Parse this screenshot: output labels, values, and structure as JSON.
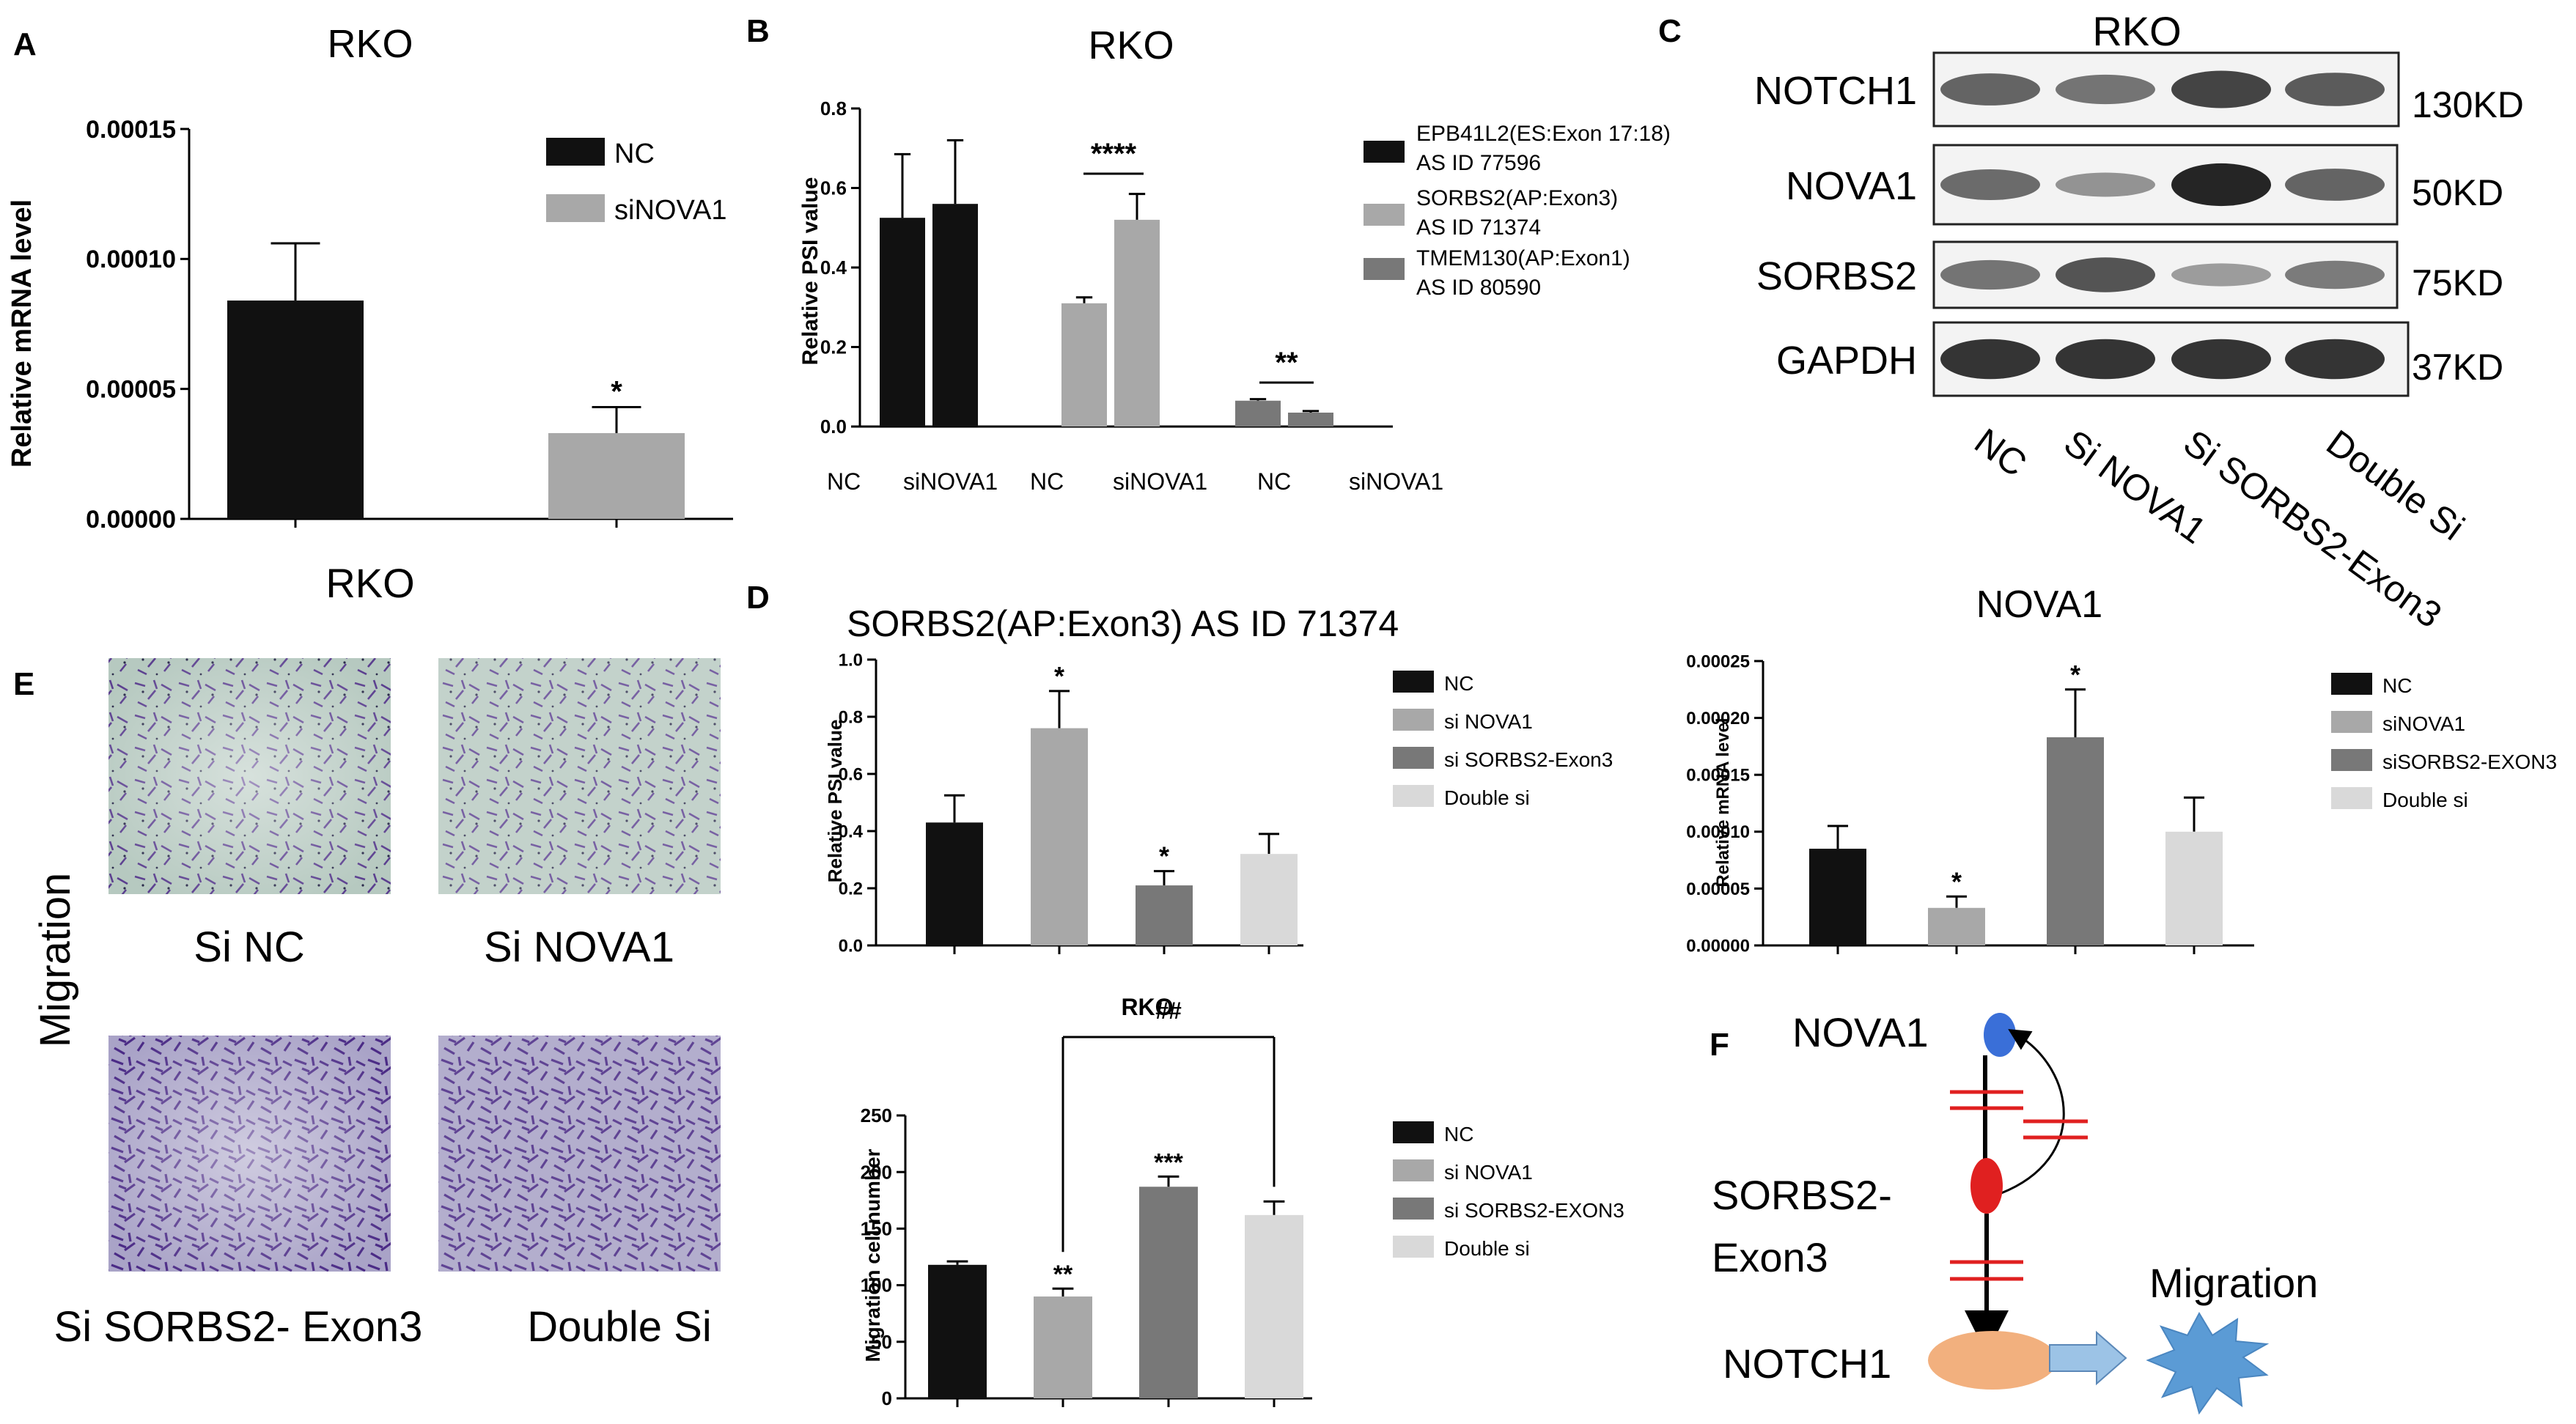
{
  "colors": {
    "black": "#111111",
    "gray": "#a8a8a8",
    "darkgray": "#787878",
    "lightgray": "#d9d9d9",
    "red": "#e02020",
    "blue": "#3a6fd8",
    "orange": "#f2b07e",
    "arrowblue": "#9cc3e6",
    "star": "#5b9bd5"
  },
  "panels": {
    "A": {
      "letter": "A",
      "chart_data": {
        "type": "bar",
        "title": "RKO",
        "xlabel": "",
        "ylabel": "Relative mRNA level",
        "categories": [
          "NC",
          "siNOVA1"
        ],
        "values": [
          8.4e-05,
          3.3e-05
        ],
        "errors": [
          2.2e-05,
          1e-05
        ],
        "ylim": [
          0,
          0.00015
        ],
        "yticks": [
          "0.00000",
          "0.00005",
          "0.00010",
          "0.00015"
        ],
        "annotations": [
          "",
          "*"
        ],
        "legend": [
          "NC",
          "siNOVA1"
        ]
      }
    },
    "B": {
      "letter": "B",
      "chart_data": {
        "type": "bar",
        "title": "RKO",
        "ylabel": "Relative PSI value",
        "groups": [
          "NC",
          "siNOVA1",
          "NC",
          "siNOVA1",
          "NC",
          "siNOVA1"
        ],
        "series": [
          {
            "name": "EPB41L2(ES:Exon 17:18) AS ID 77596",
            "values": [
              0.525,
              0.56
            ],
            "errors": [
              0.16,
              0.16
            ]
          },
          {
            "name": "SORBS2(AP:Exon3) AS ID 71374",
            "values": [
              0.31,
              0.52
            ],
            "errors": [
              0.015,
              0.065
            ]
          },
          {
            "name": "TMEM130(AP:Exon1) AS ID 80590",
            "values": [
              0.065,
              0.035
            ],
            "errors": [
              0.004,
              0.004
            ]
          }
        ],
        "ylim": [
          0,
          0.8
        ],
        "yticks": [
          "0.0",
          "0.2",
          "0.4",
          "0.6",
          "0.8"
        ],
        "sig": [
          "****",
          "**"
        ],
        "legend_lines": [
          [
            "EPB41L2(ES:Exon 17:18)",
            "AS ID 77596"
          ],
          [
            "SORBS2(AP:Exon3)",
            "AS ID 71374"
          ],
          [
            "TMEM130(AP:Exon1)",
            "AS ID 80590"
          ]
        ]
      }
    },
    "C": {
      "letter": "C",
      "title": "RKO",
      "proteins": [
        "NOTCH1",
        "NOVA1",
        "SORBS2",
        "GAPDH"
      ],
      "sizes": [
        "130KD",
        "50KD",
        "75KD",
        "37KD"
      ],
      "lanes": [
        "NC",
        "Si NOVA1",
        "Si SORBS2-Exon3",
        "Double Si"
      ]
    },
    "D1": {
      "letter": "D",
      "chart_data": {
        "type": "bar",
        "title": "SORBS2(AP:Exon3) AS ID 71374",
        "ylabel": "Relative PSI value",
        "categories": [
          "NC",
          "si NOVA1",
          "si SORBS2-Exon3",
          "Double si"
        ],
        "values": [
          0.43,
          0.76,
          0.21,
          0.32
        ],
        "errors": [
          0.095,
          0.13,
          0.05,
          0.07
        ],
        "ylim": [
          0,
          1.0
        ],
        "yticks": [
          "0.0",
          "0.2",
          "0.4",
          "0.6",
          "0.8",
          "1.0"
        ],
        "annotations": [
          "",
          "*",
          "*",
          ""
        ]
      }
    },
    "D2": {
      "chart_data": {
        "type": "bar",
        "title": "NOVA1",
        "ylabel": "Relative mRNA level",
        "categories": [
          "NC",
          "siNOVA1",
          "siSORBS2-EXON3",
          "Double si"
        ],
        "values": [
          8.5e-05,
          3.3e-05,
          0.000183,
          0.0001
        ],
        "errors": [
          2e-05,
          1e-05,
          4.2e-05,
          3e-05
        ],
        "ylim": [
          0,
          0.00025
        ],
        "yticks": [
          "0.00000",
          "0.00005",
          "0.00010",
          "0.00015",
          "0.00020",
          "0.00025"
        ],
        "annotations": [
          "",
          "*",
          "*",
          ""
        ]
      }
    },
    "D3": {
      "chart_data": {
        "type": "bar",
        "title": "RKO",
        "ylabel": "Migration cell number",
        "categories": [
          "NC",
          "si NOVA1",
          "si SORBS2-EXON3",
          "Double si"
        ],
        "values": [
          118,
          90,
          187,
          162
        ],
        "errors": [
          3,
          7,
          9,
          12
        ],
        "ylim": [
          0,
          250
        ],
        "yticks": [
          "0",
          "50",
          "100",
          "150",
          "200",
          "250"
        ],
        "annotations": [
          "",
          "**",
          "***",
          ""
        ],
        "bracket_label": "##"
      }
    },
    "E": {
      "letter": "E",
      "title": "RKO",
      "side_label": "Migration",
      "images": [
        "Si NC",
        "Si NOVA1",
        "Si SORBS2- Exon3",
        "Double Si"
      ]
    },
    "F": {
      "letter": "F",
      "labels": {
        "nova1": "NOVA1",
        "sorbs2_a": "SORBS2-",
        "sorbs2_b": "Exon3",
        "notch1": "NOTCH1",
        "migration": "Migration"
      }
    }
  }
}
